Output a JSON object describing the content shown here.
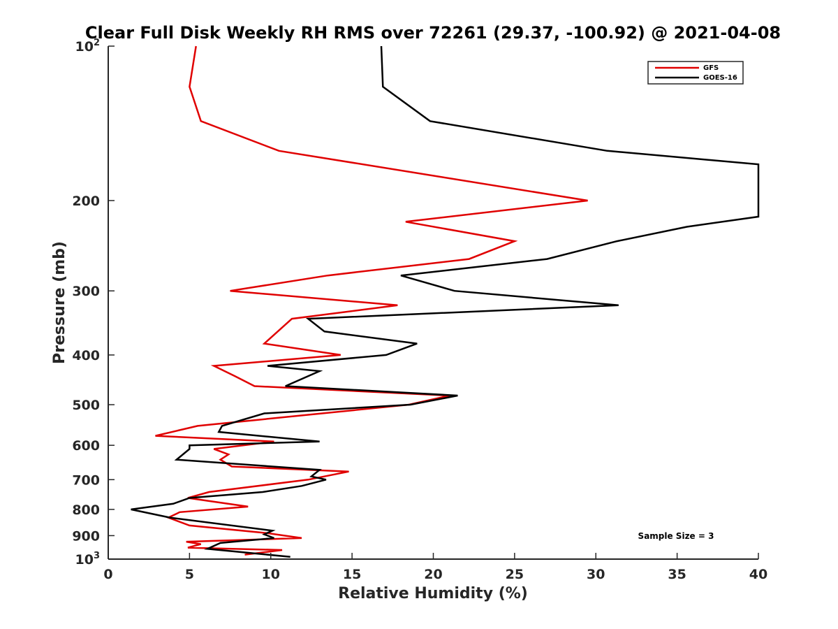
{
  "chart_data": {
    "type": "line",
    "title": "Clear Full Disk Weekly RH RMS over 72261 (29.37, -100.92) @ 2021-04-08",
    "xlabel": "Relative Humidity (%)",
    "ylabel": "Pressure (mb)",
    "xlim": [
      0,
      40
    ],
    "ylim": [
      100,
      1000
    ],
    "y_scale": "log",
    "y_reversed": true,
    "grid": false,
    "legend_position": "top-right",
    "x_ticks": [
      "0",
      "5",
      "10",
      "15",
      "20",
      "25",
      "30",
      "35",
      "40"
    ],
    "y_ticks": [
      {
        "base": "10",
        "exp": "2",
        "value": 100
      },
      {
        "base": "200",
        "exp": "",
        "value": 200
      },
      {
        "base": "300",
        "exp": "",
        "value": 300
      },
      {
        "base": "400",
        "exp": "",
        "value": 400
      },
      {
        "base": "500",
        "exp": "",
        "value": 500
      },
      {
        "base": "600",
        "exp": "",
        "value": 600
      },
      {
        "base": "700",
        "exp": "",
        "value": 700
      },
      {
        "base": "800",
        "exp": "",
        "value": 800
      },
      {
        "base": "900",
        "exp": "",
        "value": 900
      },
      {
        "base": "10",
        "exp": "3",
        "value": 1000
      }
    ],
    "annotation": "Sample Size = 3",
    "series": [
      {
        "name": "GFS",
        "color": "#e00000",
        "points": [
          [
            5.4,
            100
          ],
          [
            5.0,
            120
          ],
          [
            5.7,
            140
          ],
          [
            10.5,
            160
          ],
          [
            29.5,
            200
          ],
          [
            18.3,
            220
          ],
          [
            25.0,
            240
          ],
          [
            22.2,
            260
          ],
          [
            13.5,
            280
          ],
          [
            7.5,
            300
          ],
          [
            17.8,
            320
          ],
          [
            11.3,
            340
          ],
          [
            9.6,
            380
          ],
          [
            14.3,
            400
          ],
          [
            6.5,
            420
          ],
          [
            7.8,
            440
          ],
          [
            9.0,
            460
          ],
          [
            21.0,
            480
          ],
          [
            18.5,
            500
          ],
          [
            5.5,
            550
          ],
          [
            2.9,
            575
          ],
          [
            10.2,
            590
          ],
          [
            6.5,
            610
          ],
          [
            7.4,
            625
          ],
          [
            6.9,
            640
          ],
          [
            7.6,
            660
          ],
          [
            14.8,
            675
          ],
          [
            12.3,
            700
          ],
          [
            6.2,
            740
          ],
          [
            4.9,
            760
          ],
          [
            8.6,
            790
          ],
          [
            4.4,
            810
          ],
          [
            3.7,
            830
          ],
          [
            5.0,
            860
          ],
          [
            9.8,
            890
          ],
          [
            11.9,
            910
          ],
          [
            4.8,
            925
          ],
          [
            5.7,
            935
          ],
          [
            4.9,
            950
          ],
          [
            10.7,
            960
          ],
          [
            8.4,
            980
          ]
        ]
      },
      {
        "name": "GOES-16",
        "color": "#000000",
        "points": [
          [
            16.8,
            100
          ],
          [
            16.9,
            120
          ],
          [
            19.8,
            140
          ],
          [
            30.7,
            160
          ],
          [
            40.0,
            170
          ],
          [
            40.0,
            215
          ],
          [
            35.6,
            225
          ],
          [
            31.3,
            240
          ],
          [
            27.0,
            260
          ],
          [
            18.0,
            280
          ],
          [
            21.3,
            300
          ],
          [
            31.4,
            320
          ],
          [
            12.3,
            340
          ],
          [
            13.3,
            360
          ],
          [
            19.0,
            380
          ],
          [
            17.1,
            400
          ],
          [
            9.8,
            420
          ],
          [
            13.0,
            430
          ],
          [
            10.9,
            460
          ],
          [
            21.5,
            480
          ],
          [
            18.6,
            500
          ],
          [
            9.6,
            520
          ],
          [
            7.0,
            550
          ],
          [
            6.8,
            565
          ],
          [
            13.0,
            590
          ],
          [
            5.0,
            600
          ],
          [
            5.0,
            610
          ],
          [
            4.2,
            640
          ],
          [
            13.0,
            670
          ],
          [
            12.5,
            690
          ],
          [
            13.4,
            700
          ],
          [
            11.9,
            720
          ],
          [
            9.5,
            740
          ],
          [
            5.0,
            760
          ],
          [
            4.0,
            780
          ],
          [
            1.4,
            800
          ],
          [
            3.8,
            830
          ],
          [
            10.1,
            880
          ],
          [
            9.6,
            895
          ],
          [
            10.2,
            910
          ],
          [
            6.9,
            930
          ],
          [
            6.1,
            955
          ],
          [
            11.2,
            990
          ]
        ]
      }
    ]
  }
}
